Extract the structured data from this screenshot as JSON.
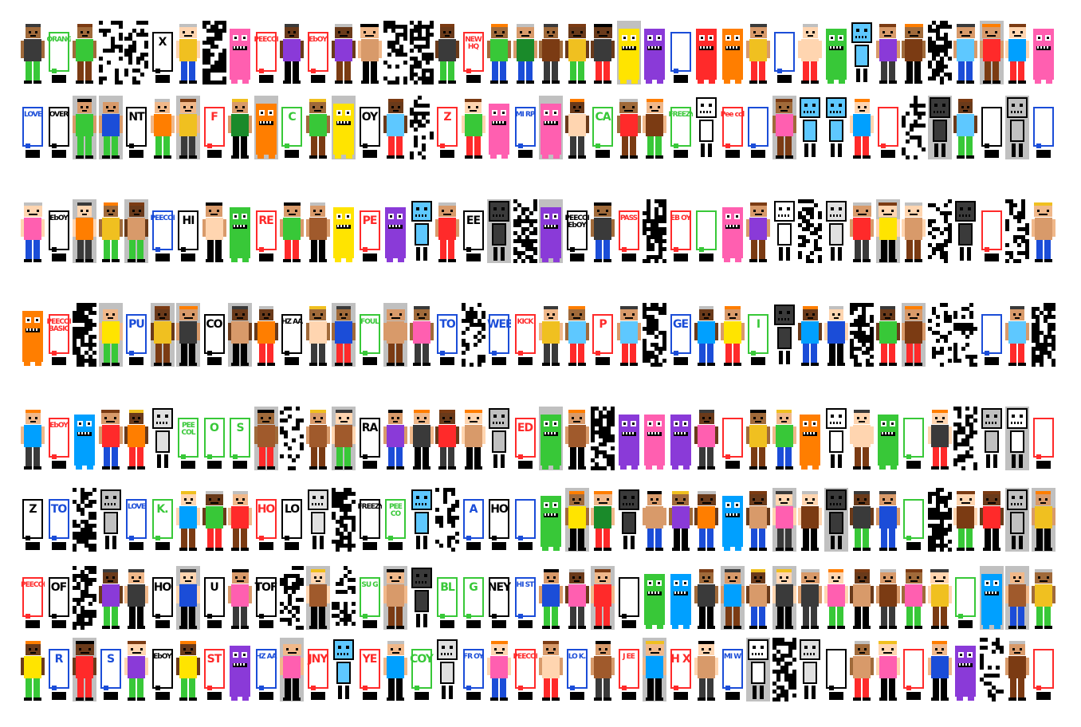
{
  "title": "",
  "background": "#ffffff",
  "palette": [
    "#000000",
    "#ffffff",
    "#c0c0c0",
    "#e0e0e0",
    "#ff2a2a",
    "#ff7e00",
    "#ffe400",
    "#38c838",
    "#1a8a2a",
    "#00a0ff",
    "#1b4dd8",
    "#8a3ad8",
    "#ff5fb0",
    "#a05a2c",
    "#ffd5b0",
    "#d89a6a",
    "#5ec8ff",
    "#7b3b13",
    "#f0c020",
    "#3a3a3a"
  ],
  "skin_tones": [
    "#ffd5b0",
    "#f0b88a",
    "#d89a6a",
    "#a06a3a",
    "#6a3a1a"
  ],
  "icons": [
    "pixel-character-icon",
    "speech-bubble-icon",
    "robot-icon",
    "monster-icon",
    "letter-block-icon"
  ],
  "rows": [
    {
      "id": "row-1",
      "count": 41,
      "words": [
        "ORANGE",
        "X",
        "PEECOL",
        "EbOY",
        "NEW HQ"
      ]
    },
    {
      "id": "row-2",
      "count": 41,
      "words": [
        "LOVE",
        "OVER",
        "NT",
        "F",
        "C",
        "OY",
        "Z",
        "MI RP",
        "CA",
        "FREEZY",
        "Pee col"
      ]
    },
    {
      "id": "row-3",
      "count": 41,
      "words": [
        "EbOY",
        "PEECOL",
        "HI",
        "RE",
        "PE",
        "EE",
        "PEECOL EbOY",
        "PASS",
        "EB OY"
      ]
    },
    {
      "id": "row-4",
      "count": 41,
      "words": [
        "PEECOL BASIC",
        "PU",
        "CO",
        "HZ AA",
        "FOUL",
        "TO",
        "WEB",
        "KICK",
        "P",
        "GE",
        "I"
      ]
    },
    {
      "id": "row-5",
      "count": 41,
      "words": [
        "EbOY",
        "PEE COL",
        "O",
        "S",
        "RA",
        "ED"
      ]
    },
    {
      "id": "row-6",
      "count": 41,
      "words": [
        "Z",
        "TO",
        "LOVE",
        "K.",
        "HO",
        "LO",
        "FREEZY",
        "PEE CO",
        "A",
        "HO"
      ]
    },
    {
      "id": "row-7",
      "count": 41,
      "words": [
        "PEECOL",
        "OF",
        "HO",
        "U",
        "TOF",
        "SU G",
        "BL",
        "G",
        "NEY",
        "HI ST"
      ]
    },
    {
      "id": "row-8",
      "count": 41,
      "words": [
        "R",
        "S",
        "EbOY",
        "ST",
        "HZ AA",
        "JNY",
        "YE",
        "COY",
        "FR OY",
        "PEECOL",
        "LO K.",
        "J EE",
        "H X",
        "MI W"
      ]
    }
  ]
}
